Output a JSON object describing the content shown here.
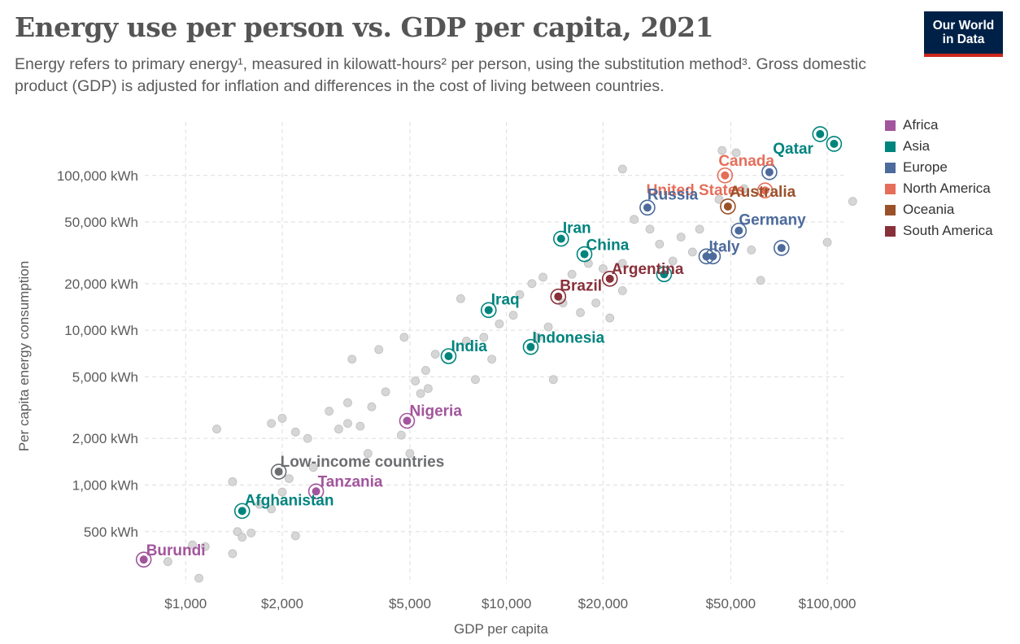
{
  "header": {
    "title": "Energy use per person vs. GDP per capita, 2021",
    "subtitle": "Energy refers to primary energy¹, measured in kilowatt-hours² per person, using the substitution method³. Gross domestic product (GDP) is adjusted for inflation and differences in the cost of living between countries."
  },
  "logo": {
    "line1": "Our World",
    "line2": "in Data"
  },
  "legend": [
    {
      "name": "Africa",
      "color": "#a2559c"
    },
    {
      "name": "Asia",
      "color": "#00847e"
    },
    {
      "name": "Europe",
      "color": "#4c6a9c"
    },
    {
      "name": "North America",
      "color": "#e56e5a"
    },
    {
      "name": "Oceania",
      "color": "#9a5129"
    },
    {
      "name": "South America",
      "color": "#883039"
    }
  ],
  "chart_data": {
    "type": "scatter",
    "title": "Energy use per person vs. GDP per capita, 2021",
    "xlabel": "GDP per capita",
    "ylabel": "Per capita energy consumption",
    "x_scale": "log",
    "y_scale": "log",
    "xlim": [
      720,
      130000
    ],
    "ylim": [
      230,
      250000
    ],
    "grid": true,
    "legend_position": "right",
    "x_ticks": [
      {
        "value": 1000,
        "label": "$1,000"
      },
      {
        "value": 2000,
        "label": "$2,000"
      },
      {
        "value": 5000,
        "label": "$5,000"
      },
      {
        "value": 10000,
        "label": "$10,000"
      },
      {
        "value": 20000,
        "label": "$20,000"
      },
      {
        "value": 50000,
        "label": "$50,000"
      },
      {
        "value": 100000,
        "label": "$100,000"
      }
    ],
    "y_ticks": [
      {
        "value": 500,
        "label": "500 kWh"
      },
      {
        "value": 1000,
        "label": "1,000 kWh"
      },
      {
        "value": 2000,
        "label": "2,000 kWh"
      },
      {
        "value": 5000,
        "label": "5,000 kWh"
      },
      {
        "value": 10000,
        "label": "10,000 kWh"
      },
      {
        "value": 20000,
        "label": "20,000 kWh"
      },
      {
        "value": 50000,
        "label": "50,000 kWh"
      },
      {
        "value": 100000,
        "label": "100,000 kWh"
      }
    ],
    "labeled_points": [
      {
        "name": "Qatar",
        "region": "Asia",
        "x": 95000,
        "y": 185000
      },
      {
        "name": "Canada",
        "region": "North America",
        "x": 48000,
        "y": 100000
      },
      {
        "name": "United States",
        "region": "North America",
        "x": 64000,
        "y": 80000
      },
      {
        "name": "Australia",
        "region": "Oceania",
        "x": 49000,
        "y": 63000
      },
      {
        "name": "Russia",
        "region": "Europe",
        "x": 27500,
        "y": 62000
      },
      {
        "name": "Germany",
        "region": "Europe",
        "x": 53000,
        "y": 44000
      },
      {
        "name": "Italy",
        "region": "Europe",
        "x": 42000,
        "y": 30000
      },
      {
        "name": "Iran",
        "region": "Asia",
        "x": 14800,
        "y": 39000
      },
      {
        "name": "China",
        "region": "Asia",
        "x": 17500,
        "y": 31000
      },
      {
        "name": "Argentina",
        "region": "South America",
        "x": 21000,
        "y": 21500
      },
      {
        "name": "Brazil",
        "region": "South America",
        "x": 14500,
        "y": 16500
      },
      {
        "name": "Iraq",
        "region": "Asia",
        "x": 8800,
        "y": 13500
      },
      {
        "name": "Indonesia",
        "region": "Asia",
        "x": 11900,
        "y": 7800
      },
      {
        "name": "India",
        "region": "Asia",
        "x": 6600,
        "y": 6800
      },
      {
        "name": "Nigeria",
        "region": "Africa",
        "x": 4900,
        "y": 2600
      },
      {
        "name": "Low-income countries",
        "region": "",
        "x": 1950,
        "y": 1220
      },
      {
        "name": "Tanzania",
        "region": "Africa",
        "x": 2550,
        "y": 910
      },
      {
        "name": "Afghanistan",
        "region": "Asia",
        "x": 1500,
        "y": 680
      },
      {
        "name": "Burundi",
        "region": "Africa",
        "x": 740,
        "y": 330
      }
    ],
    "unlabeled_points": [
      {
        "region": "Asia",
        "x": 105000,
        "y": 160000
      },
      {
        "region": "Europe",
        "x": 66000,
        "y": 105000
      },
      {
        "region": "Europe",
        "x": 72000,
        "y": 34000
      },
      {
        "region": "Europe",
        "x": 44000,
        "y": 30000
      },
      {
        "region": "Asia",
        "x": 31000,
        "y": 23000
      },
      {
        "region": "",
        "x": 47000,
        "y": 145000
      },
      {
        "region": "",
        "x": 52000,
        "y": 140000
      },
      {
        "region": "",
        "x": 23000,
        "y": 110000
      },
      {
        "region": "",
        "x": 120000,
        "y": 68000
      },
      {
        "region": "",
        "x": 46000,
        "y": 70000
      },
      {
        "region": "",
        "x": 55000,
        "y": 82000
      },
      {
        "region": "",
        "x": 40000,
        "y": 45000
      },
      {
        "region": "",
        "x": 35000,
        "y": 40000
      },
      {
        "region": "",
        "x": 30000,
        "y": 36000
      },
      {
        "region": "",
        "x": 28000,
        "y": 45000
      },
      {
        "region": "",
        "x": 25000,
        "y": 52000
      },
      {
        "region": "",
        "x": 33000,
        "y": 28000
      },
      {
        "region": "",
        "x": 38000,
        "y": 32000
      },
      {
        "region": "",
        "x": 58000,
        "y": 33000
      },
      {
        "region": "",
        "x": 62000,
        "y": 21000
      },
      {
        "region": "",
        "x": 100000,
        "y": 37000
      },
      {
        "region": "",
        "x": 23000,
        "y": 27000
      },
      {
        "region": "",
        "x": 20000,
        "y": 25000
      },
      {
        "region": "",
        "x": 18000,
        "y": 27000
      },
      {
        "region": "",
        "x": 16000,
        "y": 23000
      },
      {
        "region": "",
        "x": 13000,
        "y": 22000
      },
      {
        "region": "",
        "x": 12000,
        "y": 20000
      },
      {
        "region": "",
        "x": 11000,
        "y": 17000
      },
      {
        "region": "",
        "x": 15000,
        "y": 15000
      },
      {
        "region": "",
        "x": 17000,
        "y": 13000
      },
      {
        "region": "",
        "x": 19000,
        "y": 15000
      },
      {
        "region": "",
        "x": 21000,
        "y": 12000
      },
      {
        "region": "",
        "x": 23000,
        "y": 18000
      },
      {
        "region": "",
        "x": 9500,
        "y": 11000
      },
      {
        "region": "",
        "x": 10500,
        "y": 12500
      },
      {
        "region": "",
        "x": 13500,
        "y": 10500
      },
      {
        "region": "",
        "x": 12500,
        "y": 9000
      },
      {
        "region": "",
        "x": 8500,
        "y": 9000
      },
      {
        "region": "",
        "x": 7500,
        "y": 8500
      },
      {
        "region": "",
        "x": 9000,
        "y": 6500
      },
      {
        "region": "",
        "x": 8000,
        "y": 4800
      },
      {
        "region": "",
        "x": 6000,
        "y": 7000
      },
      {
        "region": "",
        "x": 5600,
        "y": 5500
      },
      {
        "region": "",
        "x": 5200,
        "y": 4700
      },
      {
        "region": "",
        "x": 5400,
        "y": 3900
      },
      {
        "region": "",
        "x": 5700,
        "y": 4200
      },
      {
        "region": "",
        "x": 4800,
        "y": 9000
      },
      {
        "region": "",
        "x": 7200,
        "y": 16000
      },
      {
        "region": "",
        "x": 5000,
        "y": 1600
      },
      {
        "region": "",
        "x": 4700,
        "y": 2100
      },
      {
        "region": "",
        "x": 4200,
        "y": 4000
      },
      {
        "region": "",
        "x": 3800,
        "y": 3200
      },
      {
        "region": "",
        "x": 3500,
        "y": 2400
      },
      {
        "region": "",
        "x": 3200,
        "y": 2500
      },
      {
        "region": "",
        "x": 3000,
        "y": 2300
      },
      {
        "region": "",
        "x": 3200,
        "y": 3400
      },
      {
        "region": "",
        "x": 3300,
        "y": 6500
      },
      {
        "region": "",
        "x": 4000,
        "y": 7500
      },
      {
        "region": "",
        "x": 14000,
        "y": 4800
      },
      {
        "region": "",
        "x": 2800,
        "y": 3000
      },
      {
        "region": "",
        "x": 2400,
        "y": 2000
      },
      {
        "region": "",
        "x": 2200,
        "y": 2200
      },
      {
        "region": "",
        "x": 2000,
        "y": 2700
      },
      {
        "region": "",
        "x": 1850,
        "y": 2500
      },
      {
        "region": "",
        "x": 1250,
        "y": 2300
      },
      {
        "region": "",
        "x": 2100,
        "y": 1100
      },
      {
        "region": "",
        "x": 2500,
        "y": 1300
      },
      {
        "region": "",
        "x": 3700,
        "y": 1600
      },
      {
        "region": "",
        "x": 2000,
        "y": 900
      },
      {
        "region": "",
        "x": 1850,
        "y": 700
      },
      {
        "region": "",
        "x": 1700,
        "y": 750
      },
      {
        "region": "",
        "x": 1400,
        "y": 1050
      },
      {
        "region": "",
        "x": 1450,
        "y": 500
      },
      {
        "region": "",
        "x": 1600,
        "y": 490
      },
      {
        "region": "",
        "x": 1500,
        "y": 460
      },
      {
        "region": "",
        "x": 2200,
        "y": 470
      },
      {
        "region": "",
        "x": 1050,
        "y": 410
      },
      {
        "region": "",
        "x": 1150,
        "y": 400
      },
      {
        "region": "",
        "x": 1400,
        "y": 360
      },
      {
        "region": "",
        "x": 880,
        "y": 320
      },
      {
        "region": "",
        "x": 1100,
        "y": 250
      }
    ]
  }
}
